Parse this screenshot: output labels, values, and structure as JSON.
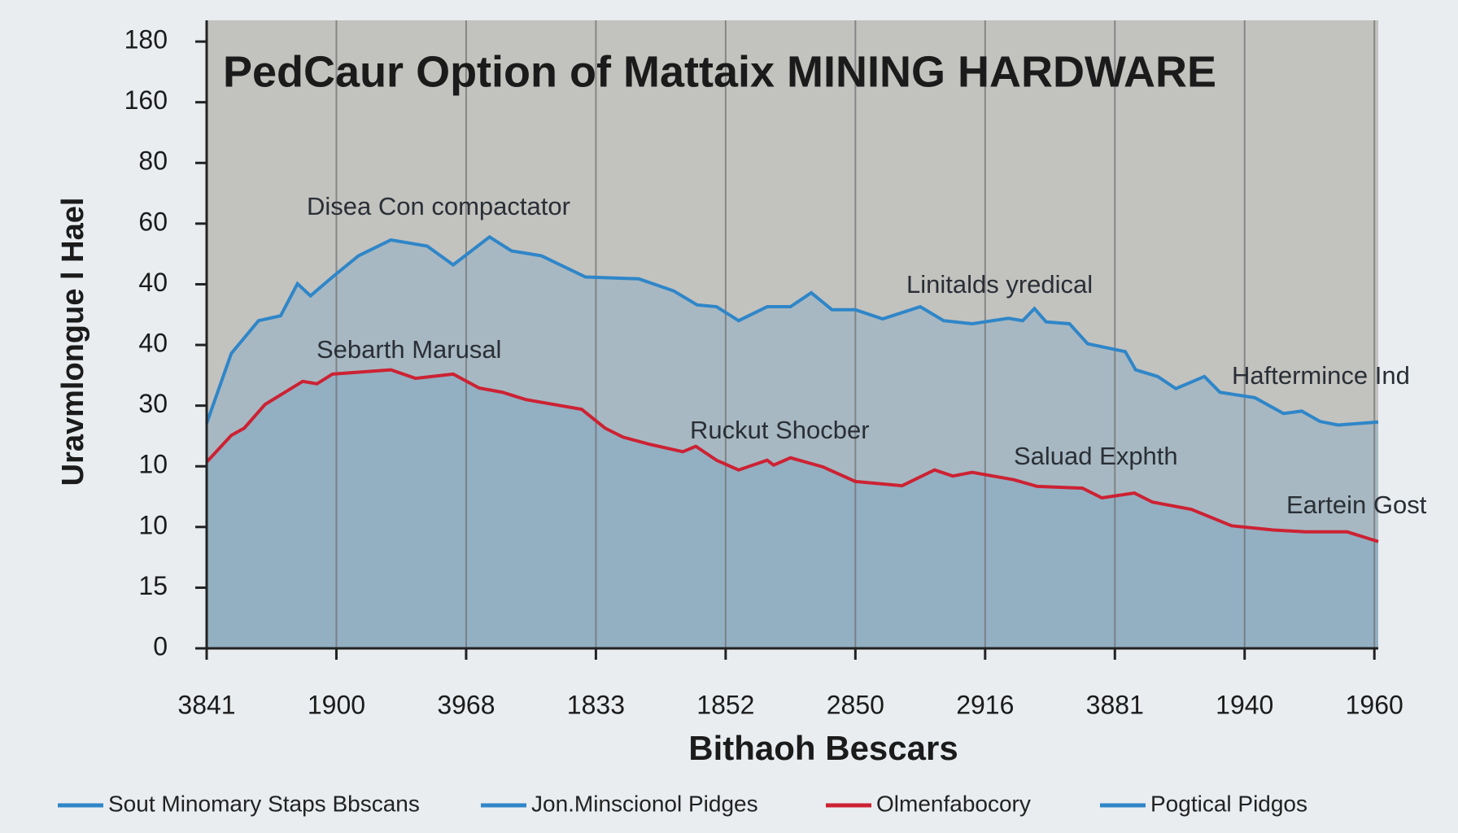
{
  "chart_data": {
    "type": "area",
    "title": "PedCaur Option of Mattaix MINING HARDWARE",
    "y_label": "Uravmlongue l Hael",
    "x_label": "Bithaoh Bescars",
    "annotations": [
      "Disea Con compactator",
      "Linitalds yredical",
      "Sebarth Marusal",
      "Haftermince Ind",
      "Ruckut Shocber",
      "Saluad Exphth",
      "Eartein Gost"
    ],
    "xlim": [
      0,
      9.03
    ],
    "ylim": [
      0,
      10.35
    ],
    "xticks": [
      {
        "value": 0,
        "label": "3841"
      },
      {
        "value": 1,
        "label": "1900"
      },
      {
        "value": 2,
        "label": "3968"
      },
      {
        "value": 3,
        "label": "1833"
      },
      {
        "value": 4,
        "label": "1852"
      },
      {
        "value": 5,
        "label": "2850"
      },
      {
        "value": 6,
        "label": "2916"
      },
      {
        "value": 7,
        "label": "3881"
      },
      {
        "value": 8,
        "label": "1940"
      },
      {
        "value": 9,
        "label": "1960"
      }
    ],
    "yticks": [
      0,
      {
        "value": 1,
        "label": "15"
      },
      {
        "value": 2,
        "label": "10"
      },
      {
        "value": 3,
        "label": "10"
      },
      {
        "value": 4,
        "label": "30"
      },
      {
        "value": 5,
        "label": "40"
      },
      {
        "value": 6,
        "label": "40"
      },
      {
        "value": 7,
        "label": "60"
      },
      {
        "value": 8,
        "label": "80"
      },
      {
        "value": 9,
        "label": "160"
      },
      {
        "value": 10,
        "label": "180"
      }
    ],
    "grid": true,
    "legend": [
      {
        "name": "Sout Minomary Staps Bbscans",
        "color": "#2f86c8"
      },
      {
        "name": "Jon.Minscionol Pidges",
        "color": "#2f86c8"
      },
      {
        "name": "Olmenfabocory",
        "color": "#cc2233"
      },
      {
        "name": "Pogtical Pidgos",
        "color": "#2f86c8"
      }
    ],
    "series": [
      {
        "color": "#2f86c8",
        "fill": "#a7b8c2",
        "x": [
          0,
          0.19,
          0.4,
          0.57,
          0.7,
          0.8,
          0.97,
          1.17,
          1.42,
          1.7,
          1.9,
          2.18,
          2.35,
          2.58,
          2.92,
          3.33,
          3.6,
          3.78,
          3.93,
          4.1,
          4.32,
          4.5,
          4.66,
          4.82,
          5.0,
          5.21,
          5.5,
          5.68,
          5.9,
          6.18,
          6.29,
          6.38,
          6.47,
          6.65,
          6.79,
          7.08,
          7.16,
          7.33,
          7.47,
          7.69,
          7.81,
          8.08,
          8.3,
          8.44,
          8.58,
          8.72,
          9.03
        ],
        "values": [
          3.71,
          4.86,
          5.4,
          5.48,
          6.01,
          5.81,
          6.12,
          6.47,
          6.73,
          6.63,
          6.32,
          6.78,
          6.55,
          6.47,
          6.12,
          6.09,
          5.89,
          5.66,
          5.63,
          5.4,
          5.63,
          5.63,
          5.86,
          5.58,
          5.58,
          5.43,
          5.63,
          5.4,
          5.35,
          5.44,
          5.4,
          5.6,
          5.38,
          5.35,
          5.02,
          4.89,
          4.59,
          4.48,
          4.28,
          4.48,
          4.22,
          4.13,
          3.87,
          3.91,
          3.74,
          3.68,
          3.73
        ]
      },
      {
        "color": "#cc2233",
        "fill": "#93afc2",
        "x": [
          0,
          0.19,
          0.29,
          0.45,
          0.74,
          0.85,
          0.97,
          1.42,
          1.61,
          1.9,
          2.1,
          2.28,
          2.46,
          2.89,
          3.07,
          3.21,
          3.42,
          3.67,
          3.77,
          3.93,
          4.1,
          4.32,
          4.37,
          4.5,
          4.75,
          5.0,
          5.36,
          5.61,
          5.75,
          5.9,
          6.22,
          6.4,
          6.75,
          6.9,
          7.15,
          7.29,
          7.59,
          7.9,
          8.22,
          8.47,
          8.79,
          9.03
        ],
        "values": [
          3.07,
          3.51,
          3.63,
          4.02,
          4.4,
          4.36,
          4.52,
          4.59,
          4.45,
          4.52,
          4.29,
          4.22,
          4.1,
          3.94,
          3.63,
          3.48,
          3.36,
          3.24,
          3.33,
          3.1,
          2.94,
          3.1,
          3.02,
          3.14,
          2.99,
          2.75,
          2.68,
          2.94,
          2.84,
          2.9,
          2.78,
          2.67,
          2.64,
          2.48,
          2.56,
          2.41,
          2.29,
          2.02,
          1.95,
          1.92,
          1.92,
          1.76
        ]
      }
    ]
  }
}
